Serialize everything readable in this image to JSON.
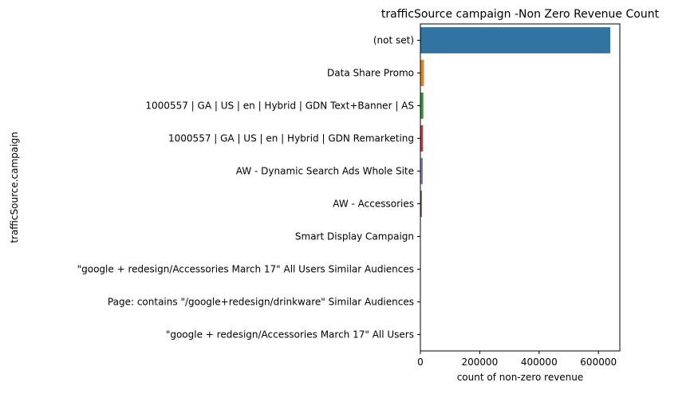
{
  "chart_data": {
    "type": "bar",
    "orientation": "horizontal",
    "title": "trafficSource campaign -Non Zero Revenue Count",
    "xlabel": "count of non-zero revenue",
    "ylabel": "trafficSource.campaign",
    "xlim": [
      0,
      672000
    ],
    "xticks": [
      0,
      200000,
      400000,
      600000
    ],
    "xtick_labels": [
      "0",
      "200000",
      "400000",
      "600000"
    ],
    "grid": false,
    "legend": "none",
    "categories": [
      "(not set)",
      "Data Share Promo",
      "1000557 | GA | US | en | Hybrid | GDN Text+Banner | AS",
      "1000557 | GA | US | en | Hybrid | GDN Remarketing",
      "AW - Dynamic Search Ads Whole Site",
      "AW - Accessories",
      "Smart Display Campaign",
      "\"google + redesign/Accessories March 17\" All Users Similar Audiences",
      "Page: contains \"/google+redesign/drinkware\" Similar Audiences",
      "\"google + redesign/Accessories March 17\" All Users"
    ],
    "values": [
      640000,
      12000,
      10000,
      9000,
      8000,
      5000,
      600,
      300,
      200,
      150
    ],
    "colors": [
      "#3274a1",
      "#e1812c",
      "#3a923a",
      "#c03d3e",
      "#9372b2",
      "#845b53",
      "#d684bd",
      "#7f7f7f",
      "#a9aa35",
      "#3a9fb1"
    ]
  }
}
